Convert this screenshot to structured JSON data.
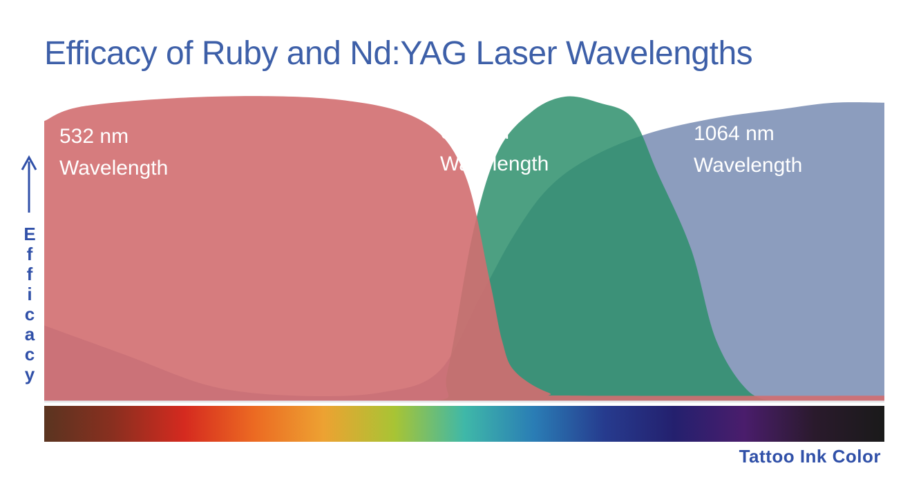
{
  "chart_data": {
    "type": "area",
    "title": "Efficacy of Ruby and Nd:YAG Laser Wavelengths",
    "xlabel": "Tattoo Ink Color",
    "ylabel": "Efficacy",
    "x_axis": "ink color spectrum from brown through red, orange, yellow, green, blue, violet to black",
    "xlim": [
      0,
      100
    ],
    "ylim": [
      0,
      1
    ],
    "series": [
      {
        "name": "532 nm Wavelength",
        "label_lines": [
          "532 nm",
          "Wavelength"
        ],
        "color": "#d16e70",
        "x": [
          0,
          5,
          20,
          35,
          45,
          50,
          53,
          54.5,
          56,
          60,
          64,
          100
        ],
        "y": [
          0.92,
          0.97,
          1.0,
          0.99,
          0.92,
          0.75,
          0.4,
          0.2,
          0.1,
          0.03,
          0.02,
          0.02
        ]
      },
      {
        "name": "694 nm Wavelength",
        "label_lines": [
          "694 nm",
          "Wavelength"
        ],
        "color": "#2e8f6c",
        "x": [
          0,
          25,
          46,
          48,
          51,
          54,
          58,
          62,
          66,
          70,
          73,
          77,
          80,
          84,
          88,
          91,
          94,
          97,
          100
        ],
        "y": [
          0.0,
          0.0,
          0.0,
          0.1,
          0.55,
          0.82,
          0.95,
          1.0,
          0.98,
          0.93,
          0.75,
          0.5,
          0.2,
          0.03,
          0.0,
          0.0,
          0.0,
          0.0,
          0.0
        ]
      },
      {
        "name": "1064 nm Wavelength",
        "label_lines": [
          "1064 nm",
          "Wavelength"
        ],
        "color": "#7388b0",
        "x": [
          0,
          10,
          20,
          30,
          40,
          47,
          52,
          56,
          60,
          65,
          72,
          80,
          88,
          94,
          100
        ],
        "y": [
          0.25,
          0.15,
          0.05,
          0.02,
          0.03,
          0.1,
          0.35,
          0.55,
          0.7,
          0.8,
          0.88,
          0.93,
          0.96,
          0.98,
          0.98
        ]
      }
    ],
    "grid": false,
    "legend": "none"
  },
  "colors": {
    "title": "#3d5fa8",
    "axis": "#3050a8",
    "ink_spectrum": [
      "#5a3420",
      "#8a2f1f",
      "#d52a1f",
      "#ec6a22",
      "#eda232",
      "#a8c434",
      "#3fb8a8",
      "#2a7db5",
      "#263b8e",
      "#24206e",
      "#4a1d6c",
      "#2a1a2c",
      "#1a1a1a"
    ]
  }
}
